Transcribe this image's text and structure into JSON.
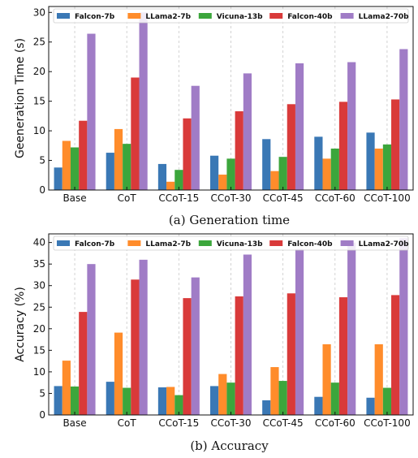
{
  "chart_data": [
    {
      "type": "bar",
      "caption": "(a) Generation time",
      "ylabel": "Geeneration Time (s)",
      "xlabel": "",
      "ylim": [
        0,
        31
      ],
      "yticks": [
        0,
        5,
        10,
        15,
        20,
        25,
        30
      ],
      "categories": [
        "Base",
        "CoT",
        "CCoT-15",
        "CCoT-30",
        "CCoT-45",
        "CCoT-60",
        "CCoT-100"
      ],
      "legend_position": "top",
      "grid": "vertical dashed",
      "series": [
        {
          "name": "Falcon-7b",
          "color": "#3a78b5",
          "values": [
            3.8,
            6.3,
            4.4,
            5.8,
            8.6,
            9.0,
            9.7
          ]
        },
        {
          "name": "LLama2-7b",
          "color": "#ff8c2b",
          "values": [
            8.3,
            10.3,
            1.4,
            2.6,
            3.2,
            5.3,
            7.0
          ]
        },
        {
          "name": "Vicuna-13b",
          "color": "#3ca63c",
          "values": [
            7.2,
            7.8,
            3.4,
            5.3,
            5.6,
            7.0,
            7.7
          ]
        },
        {
          "name": "Falcon-40b",
          "color": "#d93a3a",
          "values": [
            11.7,
            19.0,
            12.1,
            13.3,
            14.5,
            14.9,
            15.3
          ]
        },
        {
          "name": "LLama2-70b",
          "color": "#a07cc6",
          "values": [
            26.4,
            30.0,
            17.6,
            19.7,
            21.4,
            21.6,
            23.8
          ]
        }
      ]
    },
    {
      "type": "bar",
      "caption": "(b) Accuracy",
      "ylabel": "Accuracy (%)",
      "xlabel": "",
      "ylim": [
        0,
        42
      ],
      "yticks": [
        0,
        5,
        10,
        15,
        20,
        25,
        30,
        35,
        40
      ],
      "categories": [
        "Base",
        "CoT",
        "CCoT-15",
        "CCoT-30",
        "CCoT-45",
        "CCoT-60",
        "CCoT-100"
      ],
      "legend_position": "top",
      "grid": "vertical dashed",
      "series": [
        {
          "name": "Falcon-7b",
          "color": "#3a78b5",
          "values": [
            6.7,
            7.7,
            6.4,
            6.7,
            3.4,
            4.2,
            4.0
          ]
        },
        {
          "name": "LLama2-7b",
          "color": "#ff8c2b",
          "values": [
            12.6,
            19.1,
            6.5,
            9.5,
            11.1,
            16.4,
            16.4
          ]
        },
        {
          "name": "Vicuna-13b",
          "color": "#3ca63c",
          "values": [
            6.6,
            6.3,
            4.6,
            7.5,
            7.9,
            7.5,
            6.3
          ]
        },
        {
          "name": "Falcon-40b",
          "color": "#d93a3a",
          "values": [
            23.9,
            31.4,
            27.1,
            27.5,
            28.2,
            27.3,
            27.8
          ]
        },
        {
          "name": "LLama2-70b",
          "color": "#a07cc6",
          "values": [
            35.0,
            36.0,
            31.9,
            37.2,
            38.5,
            40.0,
            41.0
          ]
        }
      ]
    }
  ]
}
